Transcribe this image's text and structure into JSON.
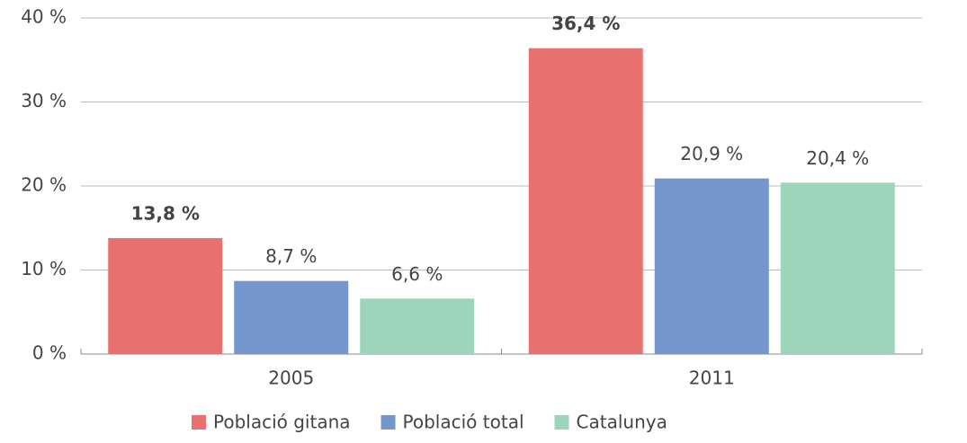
{
  "chart_data": {
    "type": "bar",
    "categories": [
      "2005",
      "2011"
    ],
    "series": [
      {
        "name": "Població gitana",
        "color": "#e8706e",
        "values": [
          13.8,
          36.4
        ],
        "value_labels": [
          "13,8 %",
          "36,4 %"
        ],
        "bold": true
      },
      {
        "name": "Població total",
        "color": "#7596cc",
        "values": [
          8.7,
          20.9
        ],
        "value_labels": [
          "8,7 %",
          "20,9 %"
        ]
      },
      {
        "name": "Catalunya",
        "color": "#9dd5ba",
        "values": [
          6.6,
          20.4
        ],
        "value_labels": [
          "6,6 %",
          "20,4 %"
        ]
      }
    ],
    "ylim": [
      0,
      40
    ],
    "yticks": [
      {
        "value": 0,
        "label": "0 %"
      },
      {
        "value": 10,
        "label": "10 %"
      },
      {
        "value": 20,
        "label": "20 %"
      },
      {
        "value": 30,
        "label": "30 %"
      },
      {
        "value": 40,
        "label": "40 %"
      }
    ],
    "grid": true,
    "legend": "bottom"
  }
}
